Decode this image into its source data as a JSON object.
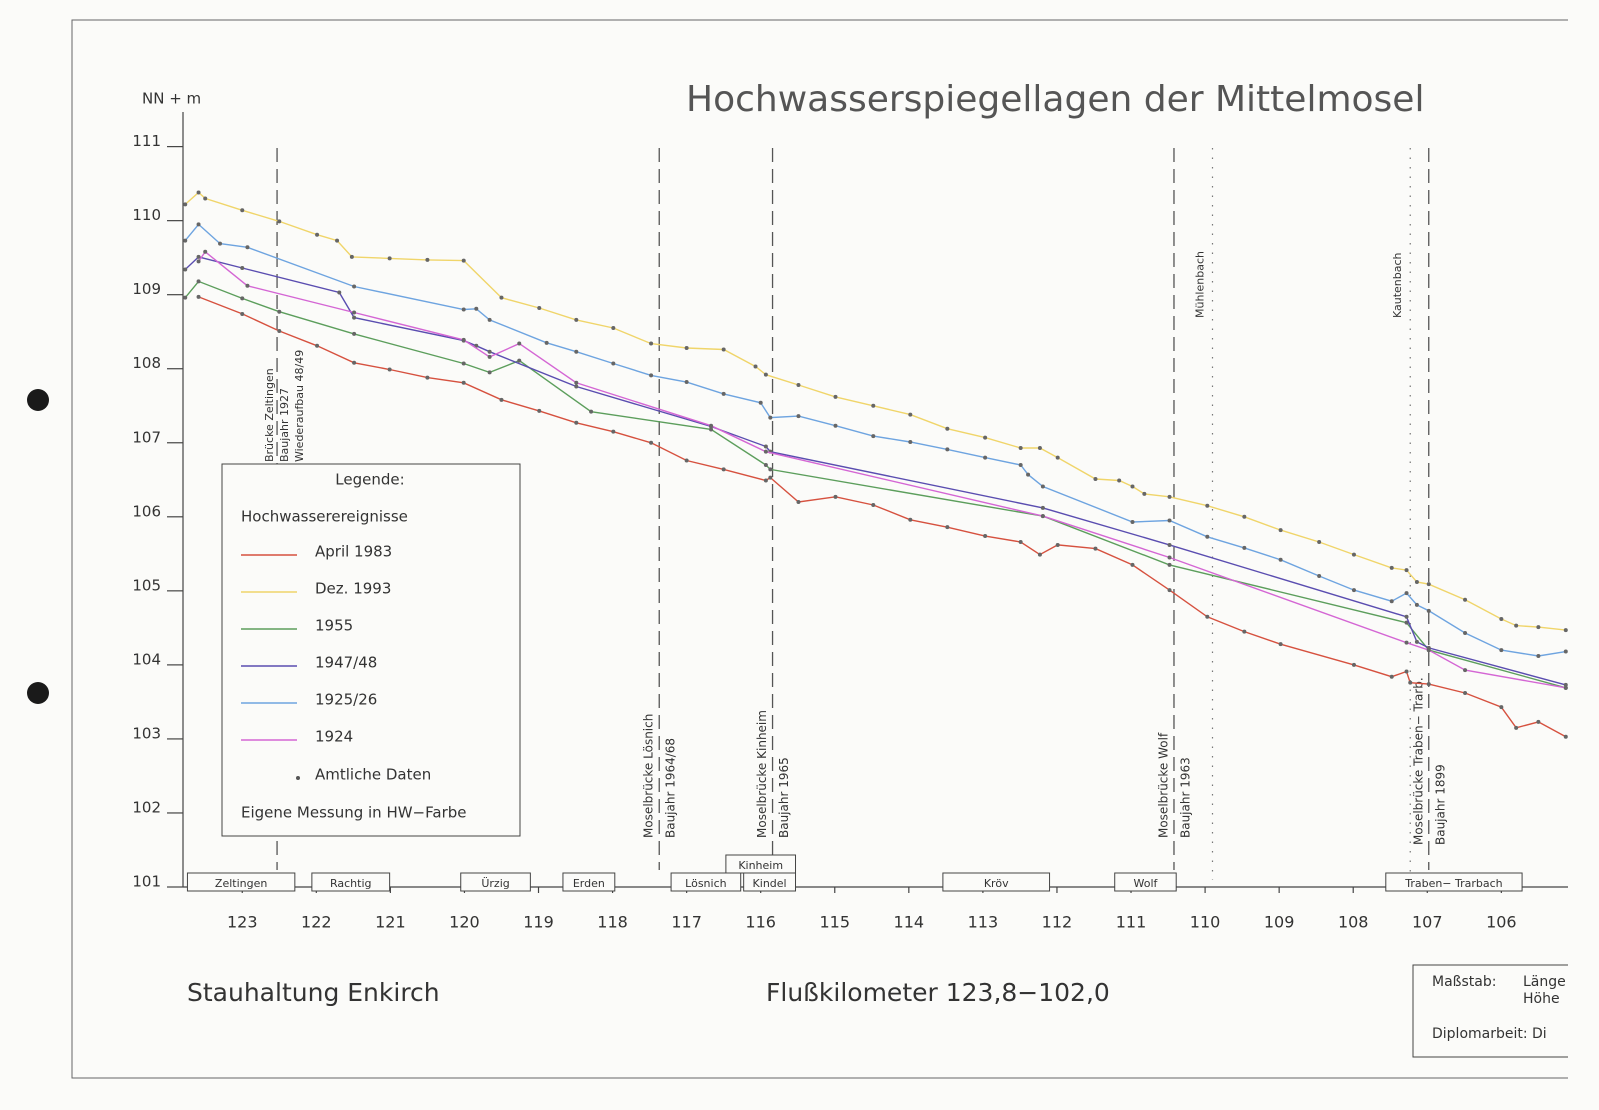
{
  "chart_data": {
    "type": "line",
    "title": "Hochwasserspiegellagen der Mittelmosel",
    "y_label": "NN + m",
    "x_label": "Flußkilometer 123,8−102,0",
    "footer_left": "Stauhaltung Enkirch",
    "xlim": [
      123.8,
      105.1
    ],
    "ylim": [
      101,
      111.4
    ],
    "xticks": [
      123,
      122,
      121,
      120,
      119,
      118,
      117,
      116,
      115,
      114,
      113,
      112,
      111,
      110,
      109,
      108,
      107,
      106
    ],
    "yticks": [
      101,
      102,
      103,
      104,
      105,
      106,
      107,
      108,
      109,
      110,
      111
    ],
    "legend": {
      "title": "Legende:",
      "heading": "Hochwasserereignisse",
      "official": "Amtliche Daten",
      "own": "Eigene Messung in HW−Farbe"
    },
    "series": [
      {
        "name": "April 1983",
        "color": "#d6513f",
        "x": [
          123.59,
          123,
          122.5,
          121.99,
          121.49,
          121.01,
          120.5,
          120.01,
          119.5,
          118.99,
          118.49,
          117.99,
          117.48,
          117.0,
          116.5,
          115.93,
          115.87,
          115.49,
          114.99,
          114.48,
          113.98,
          113.48,
          112.97,
          112.49,
          112.23,
          111.99,
          111.48,
          110.98,
          110.48,
          109.97,
          109.47,
          108.98,
          107.99,
          107.48,
          107.28,
          107.23,
          106.98,
          106.49,
          106.0,
          105.8,
          105.5,
          105.13
        ],
        "values": [
          108.97,
          108.74,
          108.51,
          108.31,
          108.08,
          107.99,
          107.88,
          107.81,
          107.58,
          107.43,
          107.27,
          107.15,
          107.0,
          106.76,
          106.64,
          106.49,
          106.53,
          106.2,
          106.27,
          106.16,
          105.96,
          105.86,
          105.74,
          105.66,
          105.49,
          105.62,
          105.57,
          105.35,
          105.01,
          104.65,
          104.45,
          104.28,
          104.0,
          103.84,
          103.91,
          103.76,
          103.74,
          103.62,
          103.43,
          103.15,
          103.23,
          103.03
        ]
      },
      {
        "name": "Dez. 1993",
        "color": "#f0d56a",
        "x": [
          123.77,
          123.59,
          123.5,
          123,
          122.5,
          121.99,
          121.72,
          121.52,
          121.01,
          120.5,
          120.01,
          119.5,
          118.99,
          118.49,
          117.99,
          117.48,
          117.0,
          116.5,
          116.07,
          115.93,
          115.49,
          114.99,
          114.48,
          113.98,
          113.48,
          112.97,
          112.49,
          112.23,
          111.99,
          111.48,
          111.16,
          110.98,
          110.82,
          110.48,
          109.97,
          109.47,
          108.98,
          108.46,
          107.99,
          107.48,
          107.28,
          107.14,
          106.98,
          106.49,
          106.0,
          105.8,
          105.5,
          105.13
        ],
        "values": [
          110.22,
          110.38,
          110.3,
          110.14,
          109.99,
          109.81,
          109.73,
          109.51,
          109.49,
          109.47,
          109.46,
          108.96,
          108.82,
          108.66,
          108.55,
          108.34,
          108.28,
          108.26,
          108.03,
          107.92,
          107.78,
          107.62,
          107.5,
          107.38,
          107.19,
          107.07,
          106.93,
          106.93,
          106.8,
          106.51,
          106.49,
          106.41,
          106.31,
          106.27,
          106.15,
          106.0,
          105.82,
          105.66,
          105.49,
          105.31,
          105.28,
          105.12,
          105.09,
          104.88,
          104.62,
          104.53,
          104.51,
          104.47
        ]
      },
      {
        "name": "1955",
        "color": "#5c9e5c",
        "x": [
          123.77,
          123.59,
          123,
          122.5,
          121.49,
          120.01,
          119.66,
          119.26,
          118.29,
          116.67,
          115.93,
          115.87,
          112.19,
          110.48,
          107.28,
          106.98,
          105.13
        ],
        "values": [
          108.96,
          109.18,
          108.95,
          108.77,
          108.47,
          108.07,
          107.95,
          108.11,
          107.42,
          107.18,
          106.7,
          106.64,
          106.01,
          105.35,
          104.57,
          104.2,
          103.69
        ]
      },
      {
        "name": "1947/48",
        "color": "#5a4db0",
        "x": [
          123.77,
          123.59,
          123,
          121.69,
          121.49,
          120.01,
          119.84,
          119.66,
          118.49,
          116.67,
          115.93,
          115.87,
          112.19,
          110.48,
          107.28,
          107.14,
          106.98,
          105.13
        ],
        "values": [
          109.34,
          109.51,
          109.36,
          109.03,
          108.69,
          108.38,
          108.31,
          108.23,
          107.76,
          107.22,
          106.95,
          106.88,
          106.12,
          105.62,
          104.65,
          104.31,
          104.23,
          103.73
        ]
      },
      {
        "name": "1925/26",
        "color": "#6ea4e0",
        "x": [
          123.77,
          123.59,
          123.3,
          122.93,
          121.49,
          120.01,
          119.84,
          119.66,
          118.89,
          118.49,
          117.99,
          117.48,
          117.0,
          116.5,
          116.0,
          115.87,
          115.49,
          114.99,
          114.48,
          113.98,
          113.48,
          112.97,
          112.49,
          112.39,
          112.19,
          110.98,
          110.48,
          109.97,
          109.47,
          108.98,
          108.46,
          107.99,
          107.48,
          107.28,
          107.14,
          106.98,
          106.49,
          106.0,
          105.5,
          105.13
        ],
        "values": [
          109.73,
          109.95,
          109.69,
          109.64,
          109.11,
          108.8,
          108.81,
          108.66,
          108.35,
          108.23,
          108.07,
          107.91,
          107.82,
          107.66,
          107.54,
          107.34,
          107.36,
          107.23,
          107.09,
          107.01,
          106.91,
          106.8,
          106.7,
          106.57,
          106.41,
          105.93,
          105.95,
          105.73,
          105.58,
          105.42,
          105.2,
          105.01,
          104.86,
          104.97,
          104.81,
          104.73,
          104.43,
          104.2,
          104.12,
          104.18
        ]
      },
      {
        "name": "1924",
        "color": "#d466d4",
        "x": [
          123.59,
          123.5,
          122.93,
          121.49,
          120.01,
          119.66,
          119.26,
          118.49,
          116.67,
          115.93,
          112.19,
          110.48,
          107.28,
          106.98,
          106.49,
          105.13
        ],
        "values": [
          109.45,
          109.58,
          109.12,
          108.76,
          108.39,
          108.16,
          108.34,
          107.81,
          107.23,
          106.88,
          106.01,
          105.45,
          104.3,
          104.2,
          103.93,
          103.69
        ]
      }
    ],
    "bridges": [
      {
        "x": 122.53,
        "lines": [
          "Brücke Zeltingen",
          "Baujahr 1927",
          "Wiederaufbau 48/49"
        ]
      },
      {
        "x": 117.37,
        "lines": [
          "Moselbrücke Lösnich",
          "Baujahr 1964/68"
        ]
      },
      {
        "x": 115.84,
        "lines": [
          "Moselbrücke Kinheim",
          "Baujahr 1965"
        ]
      },
      {
        "x": 110.42,
        "lines": [
          "Moselbrücke Wolf",
          "Baujahr 1963"
        ]
      },
      {
        "x": 106.98,
        "lines": [
          "Moselbrücke Traben− Trarb.",
          "Baujahr 1899"
        ]
      }
    ],
    "streams": [
      {
        "x": 109.9,
        "name": "Mühlenbach"
      },
      {
        "x": 107.23,
        "name": "Kautenbach"
      }
    ],
    "places": [
      {
        "name": "Zeltingen",
        "from": 123.74,
        "to": 122.29
      },
      {
        "name": "Rachtig",
        "from": 122.06,
        "to": 121.01
      },
      {
        "name": "Ürzig",
        "from": 120.05,
        "to": 119.11
      },
      {
        "name": "Erden",
        "from": 118.67,
        "to": 117.97
      },
      {
        "name": "Lösnich",
        "from": 117.21,
        "to": 116.27
      },
      {
        "name": "Kindel",
        "from": 116.23,
        "to": 115.53
      },
      {
        "name": "Kinheim",
        "from": 116.47,
        "to": 115.53
      },
      {
        "name": "Kröv",
        "from": 113.54,
        "to": 112.1
      },
      {
        "name": "Wolf",
        "from": 111.22,
        "to": 110.39
      },
      {
        "name": "Traben− Trarbach",
        "from": 107.56,
        "to": 105.72
      }
    ],
    "info_box": {
      "scale_label": "Maßstab:",
      "length": "Länge",
      "height": "Höhe",
      "thesis": "Diplomarbeit: Di"
    }
  }
}
